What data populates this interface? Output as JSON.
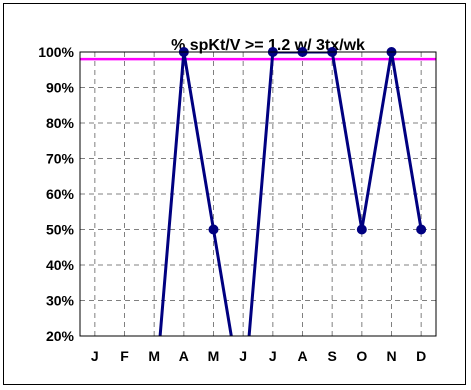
{
  "chart_data": {
    "type": "line",
    "title": "% spKt/V >= 1.2 w/ 3tx/wk",
    "xlabel": "",
    "ylabel": "",
    "categories": [
      "J",
      "F",
      "M",
      "A",
      "M",
      "J",
      "J",
      "A",
      "S",
      "O",
      "N",
      "D"
    ],
    "series": [
      {
        "values": [
          null,
          null,
          0,
          100,
          50,
          0,
          100,
          100,
          100,
          50,
          100,
          50
        ]
      }
    ],
    "target_line": 98,
    "ylim": [
      20,
      100
    ],
    "yticks": [
      20,
      30,
      40,
      50,
      60,
      70,
      80,
      90,
      100
    ],
    "ytick_labels": [
      "20%",
      "30%",
      "40%",
      "50%",
      "60%",
      "70%",
      "80%",
      "90%",
      "100%"
    ],
    "grid": true,
    "legend": "none",
    "colors": {
      "series": "#000080",
      "target": "#ff00ff",
      "grid": "#808080",
      "axis": "#000000"
    }
  }
}
